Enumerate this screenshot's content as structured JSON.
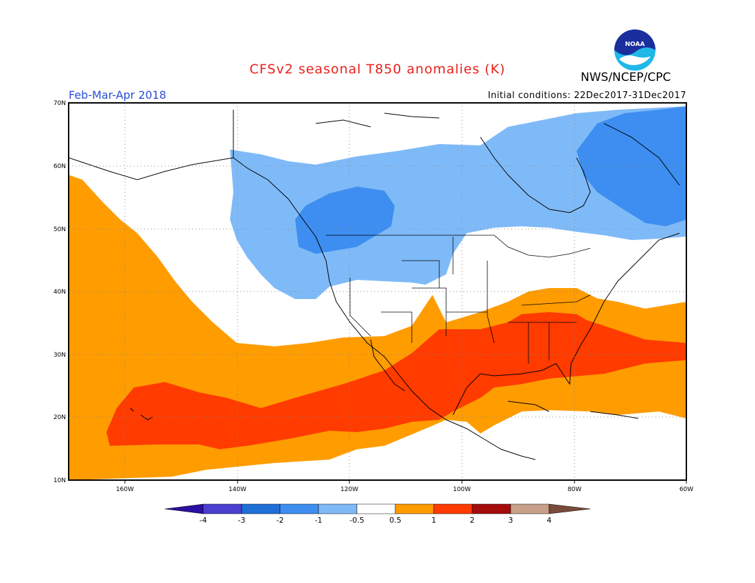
{
  "title": "CFSv2 seasonal T850 anomalies (K)",
  "organization": "NWS/NCEP/CPC",
  "logo_text": "NOAA",
  "period": "Feb-Mar-Apr 2018",
  "initial_conditions": "Initial conditions: 22Dec2017-31Dec2017",
  "map": {
    "lat_range": [
      10,
      70
    ],
    "lon_range": [
      -170,
      -60
    ],
    "lat_labels": [
      "10N",
      "20N",
      "30N",
      "40N",
      "50N",
      "60N",
      "70N"
    ],
    "lon_labels": [
      "160W",
      "140W",
      "120W",
      "100W",
      "80W",
      "60W"
    ],
    "grid": "dotted"
  },
  "colorbar": {
    "labels": [
      "-4",
      "-3",
      "-2",
      "-1",
      "-0.5",
      "0.5",
      "1",
      "2",
      "3",
      "4"
    ],
    "colors": [
      "#2b0f9e",
      "#4b3fd0",
      "#1f6fd9",
      "#3d8ef0",
      "#7fbaf8",
      "#ffffff",
      "#ff9c00",
      "#ff3b00",
      "#a50c0c",
      "#c8a08a",
      "#7a4a3a"
    ]
  },
  "legend_colors": {
    "neg_1_2": "#3d8ef0",
    "neg_05_1": "#7fbaf8",
    "pos_05_1": "#ff9c00",
    "pos_1_2": "#ff3b00"
  }
}
